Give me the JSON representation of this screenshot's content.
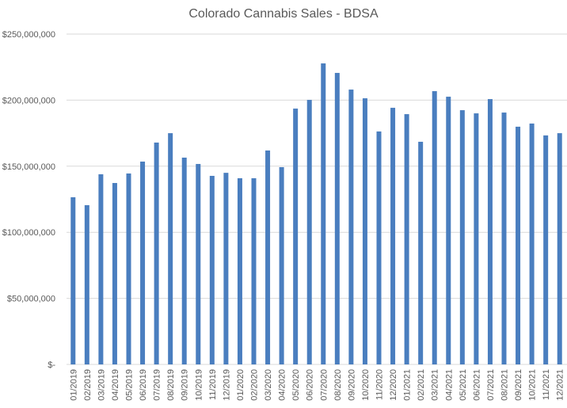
{
  "chart_data": {
    "type": "bar",
    "title": "Colorado Cannabis Sales - BDSA",
    "xlabel": "",
    "ylabel": "",
    "ylim": [
      0,
      250000000
    ],
    "grid": true,
    "legend": "none",
    "bar_color": "#4a7ebf",
    "y_ticks": [
      {
        "value": 0,
        "label": "$-"
      },
      {
        "value": 50000000,
        "label": "$50,000,000"
      },
      {
        "value": 100000000,
        "label": "$100,000,000"
      },
      {
        "value": 150000000,
        "label": "$150,000,000"
      },
      {
        "value": 200000000,
        "label": "$200,000,000"
      },
      {
        "value": 250000000,
        "label": "$250,000,000"
      }
    ],
    "categories": [
      "01/2019",
      "02/2019",
      "03/2019",
      "04/2019",
      "05/2019",
      "06/2019",
      "07/2019",
      "08/2019",
      "09/2019",
      "10/2019",
      "11/2019",
      "12/2019",
      "01/2020",
      "02/2020",
      "03/2020",
      "04/2020",
      "05/2020",
      "06/2020",
      "07/2020",
      "08/2020",
      "09/2020",
      "10/2020",
      "11/2020",
      "12/2020",
      "01/2021",
      "02/2021",
      "03/2021",
      "04/2021",
      "05/2021",
      "06/2021",
      "07/2021",
      "08/2021",
      "09/2021",
      "10/2021",
      "11/2021",
      "12/2021"
    ],
    "values": [
      126500000,
      120500000,
      143900000,
      137300000,
      144500000,
      153500000,
      167900000,
      175000000,
      156500000,
      151700000,
      142700000,
      145000000,
      140900000,
      140900000,
      161900000,
      149300000,
      193600000,
      200200000,
      227800000,
      220600000,
      208000000,
      201400000,
      176300000,
      194200000,
      189400000,
      168500000,
      206800000,
      202600000,
      192400000,
      190000000,
      200800000,
      190600000,
      179900000,
      182300000,
      173300000,
      175000000
    ]
  }
}
